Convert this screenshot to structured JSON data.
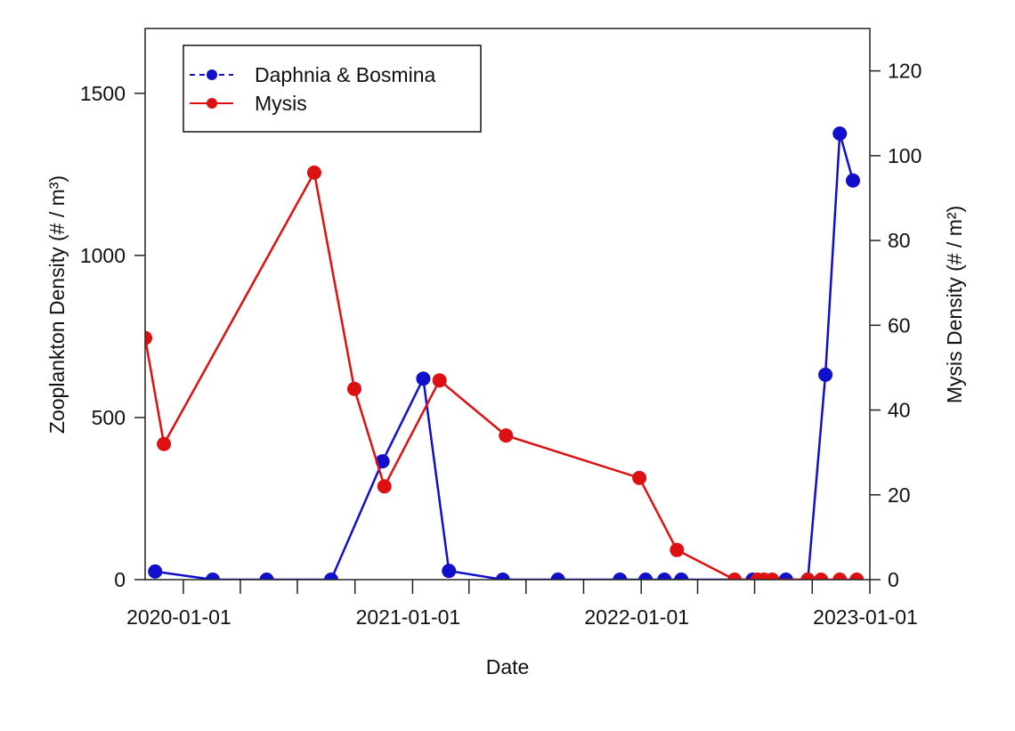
{
  "chart_data": {
    "type": "line",
    "xlabel": "Date",
    "ylabel_left": "Zooplankton Density (# / m³)",
    "ylabel_right": "Mysis Density (# / m²)",
    "xlim": [
      "2019-11-01",
      "2023-01-01"
    ],
    "ylim_left": [
      0,
      1700
    ],
    "ylim_right": [
      0,
      130
    ],
    "x_tick_labels": [
      "2020-01-01",
      "2021-01-01",
      "2022-01-01",
      "2023-01-01"
    ],
    "x_minor_ticks": [
      "2020-01-01",
      "2020-04-01",
      "2020-07-01",
      "2020-10-01",
      "2021-01-01",
      "2021-04-01",
      "2021-07-01",
      "2021-10-01",
      "2022-01-01",
      "2022-04-01",
      "2022-07-01",
      "2022-10-01",
      "2023-01-01"
    ],
    "y_ticks_left": [
      0,
      500,
      1000,
      1500
    ],
    "y_ticks_right": [
      0,
      20,
      40,
      60,
      80,
      100,
      120
    ],
    "grid": false,
    "legend_position": "top-left",
    "series": [
      {
        "name": "Daphnia & Bosmina",
        "axis": "left",
        "color": "#1010cc",
        "legend_line": "dashed",
        "points": [
          [
            "2019-11-17",
            25
          ],
          [
            "2020-02-17",
            0
          ],
          [
            "2020-05-13",
            0
          ],
          [
            "2020-08-24",
            0
          ],
          [
            "2020-11-14",
            365
          ],
          [
            "2021-01-18",
            620
          ],
          [
            "2021-02-28",
            27
          ],
          [
            "2021-05-25",
            0
          ],
          [
            "2021-08-21",
            0
          ],
          [
            "2021-11-28",
            0
          ],
          [
            "2022-01-08",
            0
          ],
          [
            "2022-02-07",
            0
          ],
          [
            "2022-03-06",
            0
          ],
          [
            "2022-06-28",
            0
          ],
          [
            "2022-08-20",
            0
          ],
          [
            "2022-09-24",
            0
          ],
          [
            "2022-10-22",
            632
          ],
          [
            "2022-11-14",
            1376
          ],
          [
            "2022-12-05",
            1231
          ]
        ]
      },
      {
        "name": "Mysis",
        "axis": "right",
        "color": "#dd1111",
        "legend_line": "solid",
        "points": [
          [
            "2019-11-01",
            57
          ],
          [
            "2019-12-01",
            32
          ],
          [
            "2020-07-28",
            96
          ],
          [
            "2020-09-30",
            45
          ],
          [
            "2020-11-17",
            22
          ],
          [
            "2021-02-13",
            47
          ],
          [
            "2021-05-30",
            34
          ],
          [
            "2021-12-29",
            24
          ],
          [
            "2022-02-27",
            7
          ],
          [
            "2022-05-30",
            0
          ],
          [
            "2022-07-06",
            0
          ],
          [
            "2022-07-16",
            0
          ],
          [
            "2022-07-29",
            0
          ],
          [
            "2022-09-24",
            0
          ],
          [
            "2022-10-15",
            0
          ],
          [
            "2022-11-14",
            0
          ],
          [
            "2022-12-11",
            0
          ]
        ]
      }
    ]
  }
}
